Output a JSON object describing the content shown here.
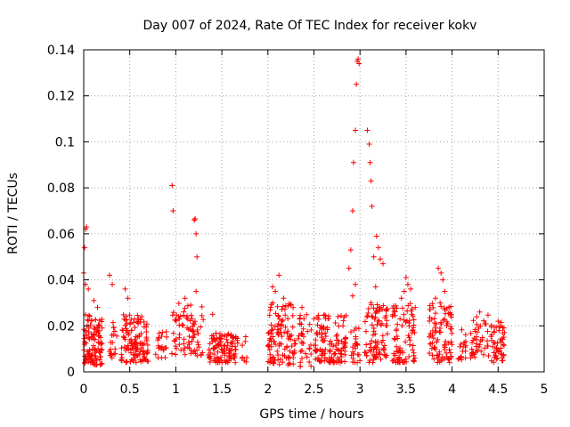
{
  "chart_data": {
    "type": "scatter",
    "title": "Day 007 of 2024, Rate Of TEC Index for receiver kokv",
    "xlabel": "GPS time / hours",
    "ylabel": "ROTI / TECUs",
    "xlim": [
      0,
      5
    ],
    "ylim": [
      0,
      0.14
    ],
    "xticks": [
      0,
      0.5,
      1,
      1.5,
      2,
      2.5,
      3,
      3.5,
      4,
      4.5,
      5
    ],
    "xtick_labels": [
      "0",
      "0.5",
      "1",
      "1.5",
      "2",
      "2.5",
      "3",
      "3.5",
      "4",
      "4.5",
      "5"
    ],
    "yticks": [
      0,
      0.02,
      0.04,
      0.06,
      0.08,
      0.1,
      0.12,
      0.14
    ],
    "ytick_labels": [
      "0",
      "0.02",
      "0.04",
      "0.06",
      "0.08",
      "0.1",
      "0.12",
      "0.14"
    ],
    "grid": true,
    "marker": "+",
    "color": "#ff0000",
    "clusters": [
      {
        "x_range": [
          0.0,
          0.2
        ],
        "y_range": [
          0.003,
          0.025
        ],
        "n": 110
      },
      {
        "x_range": [
          0.28,
          0.36
        ],
        "y_range": [
          0.006,
          0.022
        ],
        "n": 18
      },
      {
        "x_range": [
          0.4,
          0.7
        ],
        "y_range": [
          0.004,
          0.025
        ],
        "n": 120
      },
      {
        "x_range": [
          0.78,
          0.9
        ],
        "y_range": [
          0.006,
          0.018
        ],
        "n": 22
      },
      {
        "x_range": [
          0.95,
          1.3
        ],
        "y_range": [
          0.007,
          0.03
        ],
        "n": 80
      },
      {
        "x_range": [
          1.35,
          1.68
        ],
        "y_range": [
          0.004,
          0.017
        ],
        "n": 110
      },
      {
        "x_range": [
          1.72,
          1.78
        ],
        "y_range": [
          0.004,
          0.022
        ],
        "n": 8
      },
      {
        "x_range": [
          2.0,
          2.3
        ],
        "y_range": [
          0.003,
          0.03
        ],
        "n": 110
      },
      {
        "x_range": [
          2.33,
          2.47
        ],
        "y_range": [
          0.002,
          0.025
        ],
        "n": 35
      },
      {
        "x_range": [
          2.5,
          2.85
        ],
        "y_range": [
          0.004,
          0.025
        ],
        "n": 120
      },
      {
        "x_range": [
          2.9,
          3.0
        ],
        "y_range": [
          0.004,
          0.02
        ],
        "n": 25
      },
      {
        "x_range": [
          3.05,
          3.3
        ],
        "y_range": [
          0.004,
          0.03
        ],
        "n": 90
      },
      {
        "x_range": [
          3.35,
          3.6
        ],
        "y_range": [
          0.004,
          0.03
        ],
        "n": 85
      },
      {
        "x_range": [
          3.75,
          4.0
        ],
        "y_range": [
          0.004,
          0.03
        ],
        "n": 90
      },
      {
        "x_range": [
          4.05,
          4.15
        ],
        "y_range": [
          0.005,
          0.02
        ],
        "n": 18
      },
      {
        "x_range": [
          4.2,
          4.4
        ],
        "y_range": [
          0.006,
          0.025
        ],
        "n": 45
      },
      {
        "x_range": [
          4.42,
          4.57
        ],
        "y_range": [
          0.004,
          0.022
        ],
        "n": 50
      }
    ],
    "outliers": [
      {
        "x": 0.0,
        "y": 0.043
      },
      {
        "x": 0.01,
        "y": 0.054
      },
      {
        "x": 0.02,
        "y": 0.062
      },
      {
        "x": 0.03,
        "y": 0.063
      },
      {
        "x": 0.02,
        "y": 0.038
      },
      {
        "x": 0.05,
        "y": 0.036
      },
      {
        "x": 0.11,
        "y": 0.031
      },
      {
        "x": 0.15,
        "y": 0.028
      },
      {
        "x": 0.28,
        "y": 0.042
      },
      {
        "x": 0.31,
        "y": 0.038
      },
      {
        "x": 0.45,
        "y": 0.036
      },
      {
        "x": 0.48,
        "y": 0.032
      },
      {
        "x": 0.96,
        "y": 0.081
      },
      {
        "x": 0.97,
        "y": 0.07
      },
      {
        "x": 1.1,
        "y": 0.032
      },
      {
        "x": 1.2,
        "y": 0.066
      },
      {
        "x": 1.21,
        "y": 0.0665
      },
      {
        "x": 1.22,
        "y": 0.06
      },
      {
        "x": 1.23,
        "y": 0.05
      },
      {
        "x": 1.22,
        "y": 0.035
      },
      {
        "x": 1.4,
        "y": 0.025
      },
      {
        "x": 2.05,
        "y": 0.037
      },
      {
        "x": 2.08,
        "y": 0.035
      },
      {
        "x": 2.12,
        "y": 0.042
      },
      {
        "x": 2.17,
        "y": 0.032
      },
      {
        "x": 2.03,
        "y": 0.028
      },
      {
        "x": 2.25,
        "y": 0.029
      },
      {
        "x": 2.37,
        "y": 0.028
      },
      {
        "x": 2.88,
        "y": 0.045
      },
      {
        "x": 2.9,
        "y": 0.053
      },
      {
        "x": 2.92,
        "y": 0.07
      },
      {
        "x": 2.93,
        "y": 0.091
      },
      {
        "x": 2.95,
        "y": 0.105
      },
      {
        "x": 2.96,
        "y": 0.125
      },
      {
        "x": 2.97,
        "y": 0.135
      },
      {
        "x": 2.98,
        "y": 0.136
      },
      {
        "x": 2.99,
        "y": 0.134
      },
      {
        "x": 2.95,
        "y": 0.038
      },
      {
        "x": 2.92,
        "y": 0.033
      },
      {
        "x": 3.08,
        "y": 0.105
      },
      {
        "x": 3.1,
        "y": 0.099
      },
      {
        "x": 3.11,
        "y": 0.091
      },
      {
        "x": 3.12,
        "y": 0.083
      },
      {
        "x": 3.13,
        "y": 0.072
      },
      {
        "x": 3.15,
        "y": 0.05
      },
      {
        "x": 3.18,
        "y": 0.059
      },
      {
        "x": 3.2,
        "y": 0.054
      },
      {
        "x": 3.22,
        "y": 0.049
      },
      {
        "x": 3.25,
        "y": 0.047
      },
      {
        "x": 3.17,
        "y": 0.037
      },
      {
        "x": 3.12,
        "y": 0.03
      },
      {
        "x": 3.5,
        "y": 0.041
      },
      {
        "x": 3.52,
        "y": 0.038
      },
      {
        "x": 3.48,
        "y": 0.035
      },
      {
        "x": 3.55,
        "y": 0.036
      },
      {
        "x": 3.45,
        "y": 0.032
      },
      {
        "x": 3.6,
        "y": 0.028
      },
      {
        "x": 3.85,
        "y": 0.045
      },
      {
        "x": 3.88,
        "y": 0.043
      },
      {
        "x": 3.9,
        "y": 0.04
      },
      {
        "x": 3.82,
        "y": 0.032
      },
      {
        "x": 3.92,
        "y": 0.035
      },
      {
        "x": 3.87,
        "y": 0.03
      },
      {
        "x": 4.5,
        "y": 0.022
      },
      {
        "x": 4.3,
        "y": 0.026
      }
    ]
  }
}
